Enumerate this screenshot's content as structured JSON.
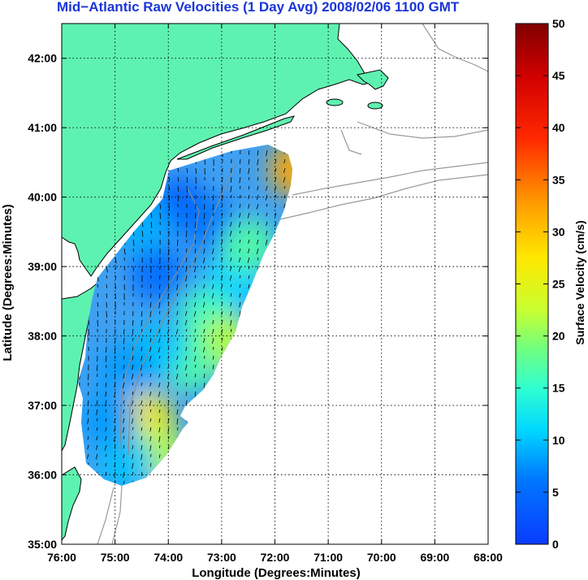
{
  "chart_data": {
    "type": "heatmap",
    "title": "Mid−Atlantic Raw Velocities (1 Day Avg) 2008/02/06 1100 GMT",
    "xlabel": "Longitude (Degrees:Minutes)",
    "ylabel": "Latitude (Degrees:Minutes)",
    "xlim": [
      -76,
      -68
    ],
    "ylim": [
      35,
      42.5
    ],
    "x_ticks": [
      {
        "value": -76,
        "label": "76:00"
      },
      {
        "value": -75,
        "label": "75:00"
      },
      {
        "value": -74,
        "label": "74:00"
      },
      {
        "value": -73,
        "label": "73:00"
      },
      {
        "value": -72,
        "label": "72:00"
      },
      {
        "value": -71,
        "label": "71:00"
      },
      {
        "value": -70,
        "label": "70:00"
      },
      {
        "value": -69,
        "label": "69:00"
      },
      {
        "value": -68,
        "label": "68:00"
      }
    ],
    "y_ticks": [
      {
        "value": 35,
        "label": "35:00"
      },
      {
        "value": 36,
        "label": "36:00"
      },
      {
        "value": 37,
        "label": "37:00"
      },
      {
        "value": 38,
        "label": "38:00"
      },
      {
        "value": 39,
        "label": "39:00"
      },
      {
        "value": 40,
        "label": "40:00"
      },
      {
        "value": 41,
        "label": "41:00"
      },
      {
        "value": 42,
        "label": "42:00"
      }
    ],
    "grid": true,
    "colorbar": {
      "label": "Surface Velocity (cm/s)",
      "range": [
        0,
        50
      ],
      "ticks": [
        {
          "value": 0,
          "label": "0"
        },
        {
          "value": 5,
          "label": "5"
        },
        {
          "value": 10,
          "label": "10"
        },
        {
          "value": 15,
          "label": "15"
        },
        {
          "value": 20,
          "label": "20"
        },
        {
          "value": 25,
          "label": "25"
        },
        {
          "value": 30,
          "label": "30"
        },
        {
          "value": 35,
          "label": "35"
        },
        {
          "value": 40,
          "label": "40"
        },
        {
          "value": 45,
          "label": "45"
        },
        {
          "value": 50,
          "label": "50"
        }
      ]
    },
    "land_color": "#5ef2b0",
    "coast_color": "#000000",
    "bathymetry_color": "#9a9a9a",
    "velocity_blobs": [
      {
        "lon": -73.8,
        "lat": 39.9,
        "speed": 4
      },
      {
        "lon": -73.2,
        "lat": 39.6,
        "speed": 6
      },
      {
        "lon": -74.2,
        "lat": 38.9,
        "speed": 5
      },
      {
        "lon": -72.8,
        "lat": 38.8,
        "speed": 11
      },
      {
        "lon": -72.5,
        "lat": 39.3,
        "speed": 17
      },
      {
        "lon": -73.3,
        "lat": 38.3,
        "speed": 16
      },
      {
        "lon": -72.9,
        "lat": 37.9,
        "speed": 22
      },
      {
        "lon": -73.6,
        "lat": 37.6,
        "speed": 17
      },
      {
        "lon": -74.2,
        "lat": 37.8,
        "speed": 10
      },
      {
        "lon": -74.8,
        "lat": 37.5,
        "speed": 8
      },
      {
        "lon": -74.4,
        "lat": 36.8,
        "speed": 27
      },
      {
        "lon": -74.2,
        "lat": 36.3,
        "speed": 22
      },
      {
        "lon": -74.8,
        "lat": 36.2,
        "speed": 10
      },
      {
        "lon": -75.1,
        "lat": 36.8,
        "speed": 8
      },
      {
        "lon": -71.6,
        "lat": 40.4,
        "speed": 32
      },
      {
        "lon": -74.5,
        "lat": 39.6,
        "speed": 9
      }
    ]
  }
}
